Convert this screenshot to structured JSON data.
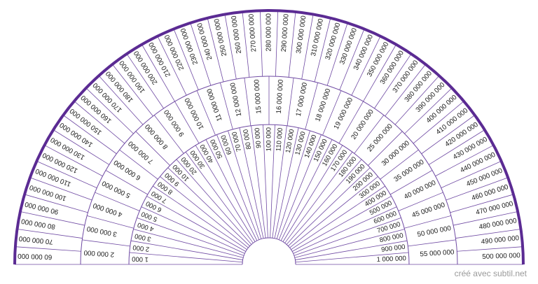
{
  "footer_credit": "créé avec subtil.net",
  "colors": {
    "outer_border": "#5b2b93",
    "spoke_line": "#6f4aa3",
    "ring_line": "#6f4aa3",
    "text": "#1a1a1a"
  },
  "rings": {
    "inner": [
      "1 000",
      "2 000",
      "3 000",
      "4 000",
      "5 000",
      "6 000",
      "7 000",
      "8 000",
      "9 000",
      "10 000",
      "20 000",
      "30 000",
      "40 000",
      "50 000",
      "60 000",
      "70 000",
      "80 000",
      "90 000",
      "100 000",
      "110 000",
      "120 000",
      "130 000",
      "140 000",
      "150 000",
      "160 000",
      "170 000",
      "180 000",
      "190 000",
      "200 000",
      "300 000",
      "400 000",
      "500 000",
      "600 000",
      "700 000",
      "800 000",
      "900 000",
      "1 000 000"
    ],
    "middle": [
      "2 000 000",
      "3 000 000",
      "4 000 000",
      "5 000 000",
      "6 000 000",
      "7 000 000",
      "8 000 000",
      "9 000 000",
      "10 000 000",
      "11 000 000",
      "12 000 000",
      "15 000 000",
      "16 000 000",
      "17 000 000",
      "18 000 000",
      "19 000 000",
      "20 000 000",
      "25 000 000",
      "30 000 000",
      "35 000 000",
      "40 000 000",
      "45 000 000",
      "50 000 000",
      "55 000 000"
    ],
    "outer": [
      "60 000 000",
      "70 000 000",
      "80 000 000",
      "90 000 000",
      "100 000 000",
      "110 000 000",
      "120 000 000",
      "130 000 000",
      "140 000 000",
      "150 000 000",
      "160 000 000",
      "170 000 000",
      "180 000 000",
      "190 000 000",
      "200 000 000",
      "210 000 000",
      "220 000 000",
      "230 000 000",
      "240 000 000",
      "250 000 000",
      "260 000 000",
      "270 000 000",
      "280 000 000",
      "290 000 000",
      "300 000 000",
      "310 000 000",
      "320 000 000",
      "330 000 000",
      "340 000 000",
      "350 000 000",
      "360 000 000",
      "370 000 000",
      "380 000 000",
      "390 000 000",
      "400 000 000",
      "410 000 000",
      "420 000 000",
      "430 000 000",
      "440 000 000",
      "450 000 000",
      "460 000 000",
      "470 000 000",
      "480 000 000",
      "490 000 000",
      "500 000 000"
    ]
  }
}
